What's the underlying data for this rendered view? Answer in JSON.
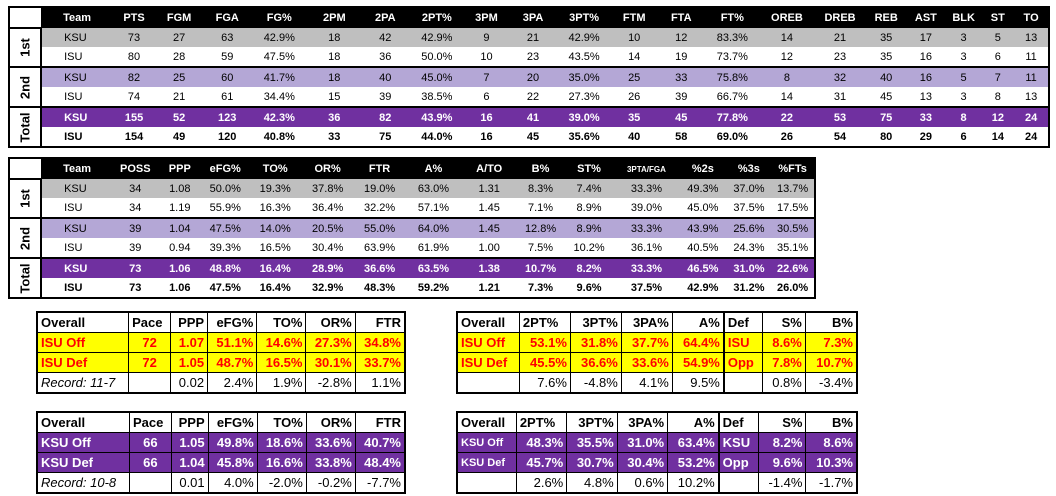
{
  "table1": {
    "headers": [
      "Team",
      "PTS",
      "FGM",
      "FGA",
      "FG%",
      "2PM",
      "2PA",
      "2PT%",
      "3PM",
      "3PA",
      "3PT%",
      "FTM",
      "FTA",
      "FT%",
      "OREB",
      "DREB",
      "REB",
      "AST",
      "BLK",
      "ST",
      "TO"
    ],
    "periods": [
      "1st",
      "2nd",
      "Total"
    ],
    "rows": [
      [
        "KSU",
        "73",
        "27",
        "63",
        "42.9%",
        "18",
        "42",
        "42.9%",
        "9",
        "21",
        "42.9%",
        "10",
        "12",
        "83.3%",
        "14",
        "21",
        "35",
        "17",
        "3",
        "5",
        "13"
      ],
      [
        "ISU",
        "80",
        "28",
        "59",
        "47.5%",
        "18",
        "36",
        "50.0%",
        "10",
        "23",
        "43.5%",
        "14",
        "19",
        "73.7%",
        "12",
        "23",
        "35",
        "16",
        "3",
        "6",
        "11"
      ],
      [
        "KSU",
        "82",
        "25",
        "60",
        "41.7%",
        "18",
        "40",
        "45.0%",
        "7",
        "20",
        "35.0%",
        "25",
        "33",
        "75.8%",
        "8",
        "32",
        "40",
        "16",
        "5",
        "7",
        "11"
      ],
      [
        "ISU",
        "74",
        "21",
        "61",
        "34.4%",
        "15",
        "39",
        "38.5%",
        "6",
        "22",
        "27.3%",
        "26",
        "39",
        "66.7%",
        "14",
        "31",
        "45",
        "13",
        "3",
        "8",
        "13"
      ],
      [
        "KSU",
        "155",
        "52",
        "123",
        "42.3%",
        "36",
        "82",
        "43.9%",
        "16",
        "41",
        "39.0%",
        "35",
        "45",
        "77.8%",
        "22",
        "53",
        "75",
        "33",
        "8",
        "12",
        "24"
      ],
      [
        "ISU",
        "154",
        "49",
        "120",
        "40.8%",
        "33",
        "75",
        "44.0%",
        "16",
        "45",
        "35.6%",
        "40",
        "58",
        "69.0%",
        "26",
        "54",
        "80",
        "29",
        "6",
        "14",
        "24"
      ]
    ]
  },
  "table2": {
    "headers": [
      "Team",
      "POSS",
      "PPP",
      "eFG%",
      "TO%",
      "OR%",
      "FTR",
      "A%",
      "A/TO",
      "B%",
      "ST%",
      "3PTA/FGA",
      "%2s",
      "%3s",
      "%FTs"
    ],
    "periods": [
      "1st",
      "2nd",
      "Total"
    ],
    "rows": [
      [
        "KSU",
        "34",
        "1.08",
        "50.0%",
        "19.3%",
        "37.8%",
        "19.0%",
        "63.0%",
        "1.31",
        "8.3%",
        "7.4%",
        "33.3%",
        "49.3%",
        "37.0%",
        "13.7%"
      ],
      [
        "ISU",
        "34",
        "1.19",
        "55.9%",
        "16.3%",
        "36.4%",
        "32.2%",
        "57.1%",
        "1.45",
        "7.1%",
        "8.9%",
        "39.0%",
        "45.0%",
        "37.5%",
        "17.5%"
      ],
      [
        "KSU",
        "39",
        "1.04",
        "47.5%",
        "14.0%",
        "20.5%",
        "55.0%",
        "64.0%",
        "1.45",
        "12.8%",
        "8.9%",
        "33.3%",
        "43.9%",
        "25.6%",
        "30.5%"
      ],
      [
        "ISU",
        "39",
        "0.94",
        "39.3%",
        "16.5%",
        "30.4%",
        "63.9%",
        "61.9%",
        "1.00",
        "7.5%",
        "10.2%",
        "36.1%",
        "40.5%",
        "24.3%",
        "35.1%"
      ],
      [
        "KSU",
        "73",
        "1.06",
        "48.8%",
        "16.4%",
        "28.9%",
        "36.6%",
        "63.5%",
        "1.38",
        "10.7%",
        "8.2%",
        "33.3%",
        "46.5%",
        "31.0%",
        "22.6%"
      ],
      [
        "ISU",
        "73",
        "1.06",
        "47.5%",
        "16.4%",
        "32.9%",
        "48.3%",
        "59.2%",
        "1.21",
        "7.3%",
        "9.6%",
        "37.5%",
        "42.9%",
        "31.2%",
        "26.0%"
      ]
    ]
  },
  "isu_left": {
    "headers": [
      "Overall",
      "Pace",
      "PPP",
      "eFG%",
      "TO%",
      "OR%",
      "FTR"
    ],
    "rows": [
      [
        "ISU Off",
        "72",
        "1.07",
        "51.1%",
        "14.6%",
        "27.3%",
        "34.8%"
      ],
      [
        "ISU Def",
        "72",
        "1.05",
        "48.7%",
        "16.5%",
        "30.1%",
        "33.7%"
      ]
    ],
    "footer": [
      "Record: 11-7",
      "",
      "0.02",
      "2.4%",
      "1.9%",
      "-2.8%",
      "1.1%"
    ]
  },
  "isu_right": {
    "headers": [
      "Overall",
      "2PT%",
      "3PT%",
      "3PA%",
      "A%",
      "Def",
      "S%",
      "B%"
    ],
    "rows": [
      [
        "ISU Off",
        "53.1%",
        "31.8%",
        "37.7%",
        "64.4%",
        "ISU",
        "8.6%",
        "7.3%"
      ],
      [
        "ISU Def",
        "45.5%",
        "36.6%",
        "33.6%",
        "54.9%",
        "Opp",
        "7.8%",
        "10.7%"
      ]
    ],
    "footer": [
      "",
      "7.6%",
      "-4.8%",
      "4.1%",
      "9.5%",
      "",
      "0.8%",
      "-3.4%"
    ]
  },
  "ksu_left": {
    "headers": [
      "Overall",
      "Pace",
      "PPP",
      "eFG%",
      "TO%",
      "OR%",
      "FTR"
    ],
    "rows": [
      [
        "KSU Off",
        "66",
        "1.05",
        "49.8%",
        "18.6%",
        "33.6%",
        "40.7%"
      ],
      [
        "KSU Def",
        "66",
        "1.04",
        "45.8%",
        "16.6%",
        "33.8%",
        "48.4%"
      ]
    ],
    "footer": [
      "Record: 10-8",
      "",
      "0.01",
      "4.0%",
      "-2.0%",
      "-0.2%",
      "-7.7%"
    ]
  },
  "ksu_right": {
    "headers": [
      "Overall",
      "2PT%",
      "3PT%",
      "3PA%",
      "A%",
      "Def",
      "S%",
      "B%"
    ],
    "rows": [
      [
        "KSU Off",
        "48.3%",
        "35.5%",
        "31.0%",
        "63.4%",
        "KSU",
        "8.2%",
        "8.6%"
      ],
      [
        "KSU Def",
        "45.7%",
        "30.7%",
        "30.4%",
        "53.2%",
        "Opp",
        "9.6%",
        "10.3%"
      ]
    ],
    "footer": [
      "",
      "2.6%",
      "4.8%",
      "0.6%",
      "10.2%",
      "",
      "-1.4%",
      "-1.7%"
    ]
  }
}
